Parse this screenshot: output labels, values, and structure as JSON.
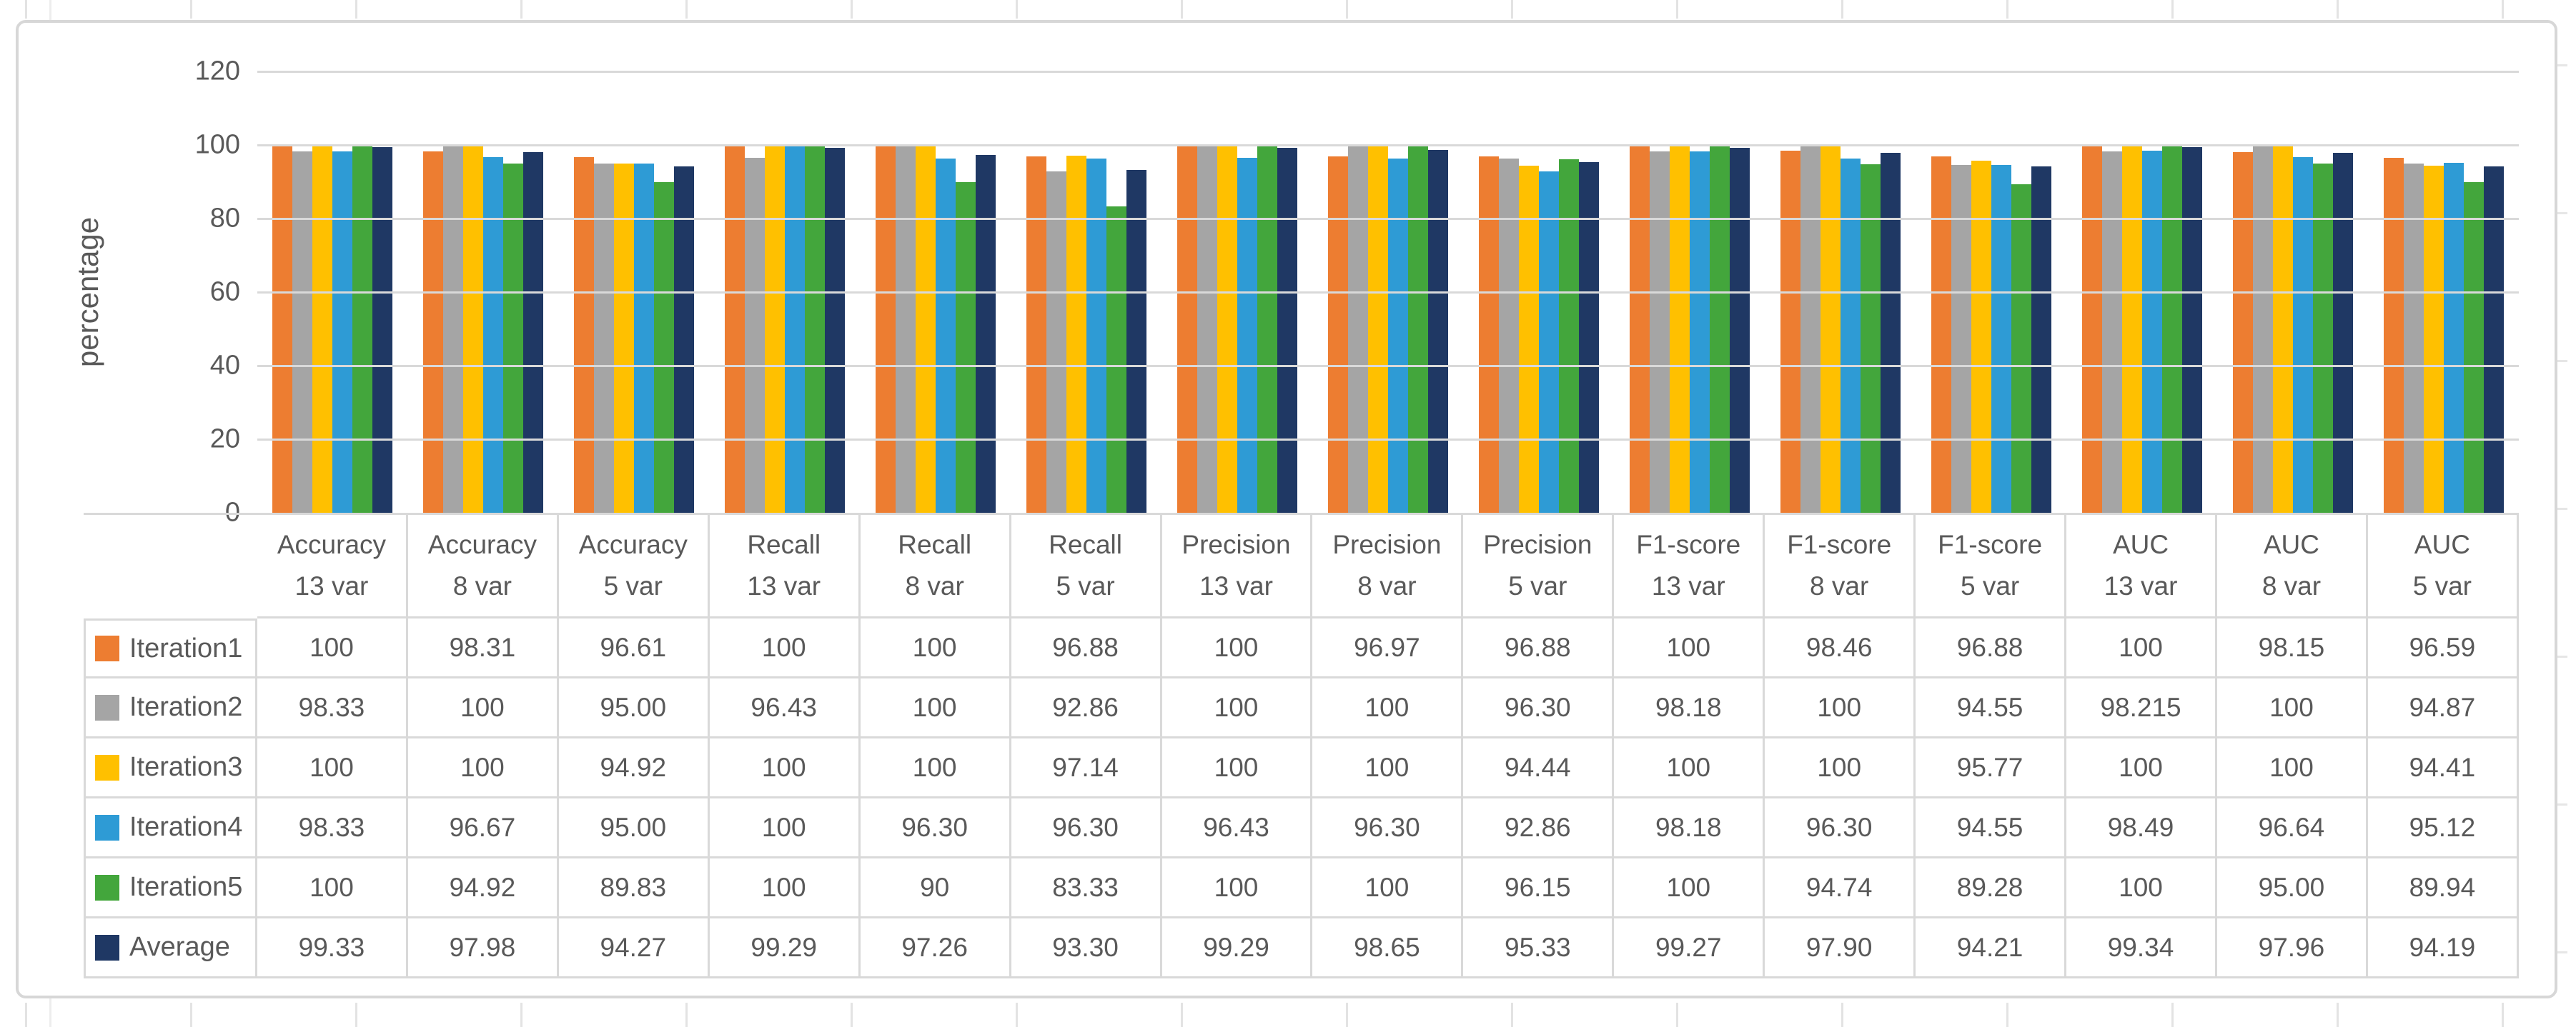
{
  "chart_data": {
    "type": "bar",
    "title": "",
    "ylabel": "percentage",
    "xlabel": "",
    "ylim": [
      0,
      120
    ],
    "yticks": [
      120,
      100,
      80,
      60,
      40,
      20,
      0
    ],
    "grid": true,
    "legend_position": "data-table-left",
    "categories": [
      {
        "l1": "Accuracy",
        "l2": "13 var"
      },
      {
        "l1": "Accuracy",
        "l2": "8 var"
      },
      {
        "l1": "Accuracy",
        "l2": "5 var"
      },
      {
        "l1": "Recall",
        "l2": "13 var"
      },
      {
        "l1": "Recall",
        "l2": "8 var"
      },
      {
        "l1": "Recall",
        "l2": "5 var"
      },
      {
        "l1": "Precision",
        "l2": "13 var"
      },
      {
        "l1": "Precision",
        "l2": "8 var"
      },
      {
        "l1": "Precision",
        "l2": "5 var"
      },
      {
        "l1": "F1-score",
        "l2": "13 var"
      },
      {
        "l1": "F1-score",
        "l2": "8 var"
      },
      {
        "l1": "F1-score",
        "l2": "5 var"
      },
      {
        "l1": "AUC",
        "l2": "13 var"
      },
      {
        "l1": "AUC",
        "l2": "8 var"
      },
      {
        "l1": "AUC",
        "l2": "5 var"
      }
    ],
    "series": [
      {
        "name": "Iteration1",
        "color": "#ED7D31",
        "values": [
          "100",
          "98.31",
          "96.61",
          "100",
          "100",
          "96.88",
          "100",
          "96.97",
          "96.88",
          "100",
          "98.46",
          "96.88",
          "100",
          "98.15",
          "96.59"
        ]
      },
      {
        "name": "Iteration2",
        "color": "#A5A5A5",
        "values": [
          "98.33",
          "100",
          "95.00",
          "96.43",
          "100",
          "92.86",
          "100",
          "100",
          "96.30",
          "98.18",
          "100",
          "94.55",
          "98.215",
          "100",
          "94.87"
        ]
      },
      {
        "name": "Iteration3",
        "color": "#FFC000",
        "values": [
          "100",
          "100",
          "94.92",
          "100",
          "100",
          "97.14",
          "100",
          "100",
          "94.44",
          "100",
          "100",
          "95.77",
          "100",
          "100",
          "94.41"
        ]
      },
      {
        "name": "Iteration4",
        "color": "#2E9BD5",
        "values": [
          "98.33",
          "96.67",
          "95.00",
          "100",
          "96.30",
          "96.30",
          "96.43",
          "96.30",
          "92.86",
          "98.18",
          "96.30",
          "94.55",
          "98.49",
          "96.64",
          "95.12"
        ]
      },
      {
        "name": "Iteration5",
        "color": "#43A63C",
        "values": [
          "100",
          "94.92",
          "89.83",
          "100",
          "90",
          "83.33",
          "100",
          "100",
          "96.15",
          "100",
          "94.74",
          "89.28",
          "100",
          "95.00",
          "89.94"
        ]
      },
      {
        "name": "Average",
        "color": "#1F3864",
        "values": [
          "99.33",
          "97.98",
          "94.27",
          "99.29",
          "97.26",
          "93.30",
          "99.29",
          "98.65",
          "95.33",
          "99.27",
          "97.90",
          "94.21",
          "99.34",
          "97.96",
          "94.19"
        ]
      }
    ]
  }
}
